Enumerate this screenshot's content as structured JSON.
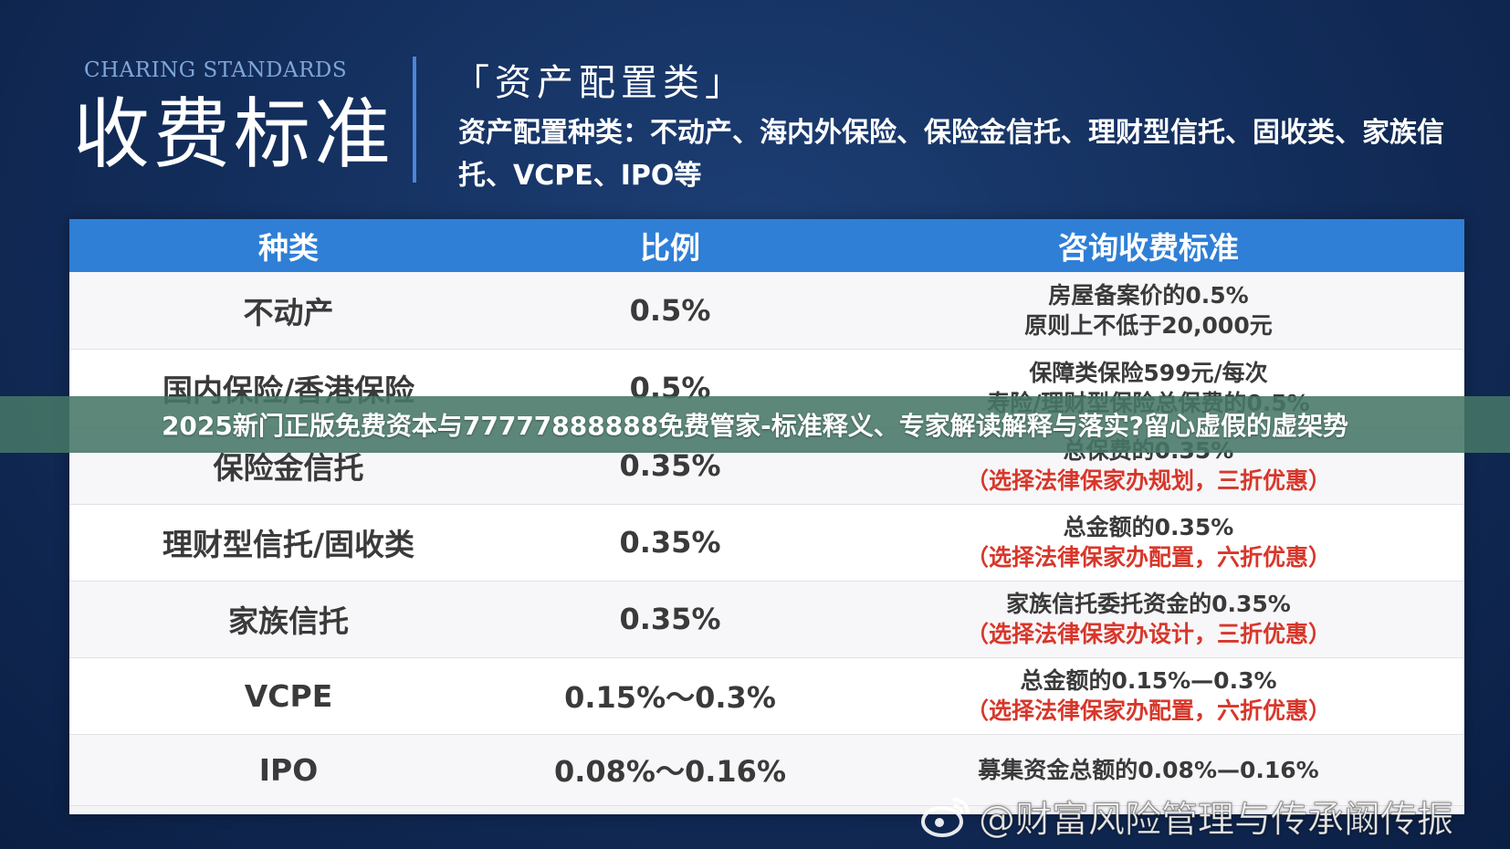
{
  "header": {
    "eyebrow": "CHARING STANDARDS",
    "main_title": "收费标准",
    "section_title": "「资产配置类」",
    "section_desc": "资产配置种类：不动产、海内外保险、保险金信托、理财型信托、固收类、家族信托、VCPE、IPO等"
  },
  "table": {
    "columns": [
      "种类",
      "比例",
      "咨询收费标准"
    ],
    "rows": [
      {
        "type": "不动产",
        "ratio": "0.5%",
        "fee": [
          "房屋备案价的0.5%",
          "原则上不低于20,000元"
        ],
        "note": ""
      },
      {
        "type": "国内保险/香港保险",
        "ratio": "0.5%",
        "fee": [
          "保障类保险599元/每次",
          "寿险/理财型保险总保费的0.5%"
        ],
        "note": ""
      },
      {
        "type": "保险金信托",
        "ratio": "0.35%",
        "fee": [
          "总保费的0.35%"
        ],
        "note": "（选择法律保家办规划，三折优惠）"
      },
      {
        "type": "理财型信托/固收类",
        "ratio": "0.35%",
        "fee": [
          "总金额的0.35%"
        ],
        "note": "（选择法律保家办配置，六折优惠）"
      },
      {
        "type": "家族信托",
        "ratio": "0.35%",
        "fee": [
          "家族信托委托资金的0.35%"
        ],
        "note": "（选择法律保家办设计，三折优惠）"
      },
      {
        "type": "VCPE",
        "ratio": "0.15%～0.3%",
        "fee": [
          "总金额的0.15%—0.3%"
        ],
        "note": "（选择法律保家办配置，六折优惠）"
      },
      {
        "type": "IPO",
        "ratio": "0.08%～0.16%",
        "fee": [
          "募集资金总额的0.08%—0.16%"
        ],
        "note": ""
      }
    ]
  },
  "banner": {
    "text": "2025新门正版免费资本与77777888888免费管家-标准释义、专家解读解释与落实?留心虚假的虚架势"
  },
  "watermark": {
    "text": "@财富风险管理与传承阚传振",
    "icon": "weibo-icon"
  }
}
